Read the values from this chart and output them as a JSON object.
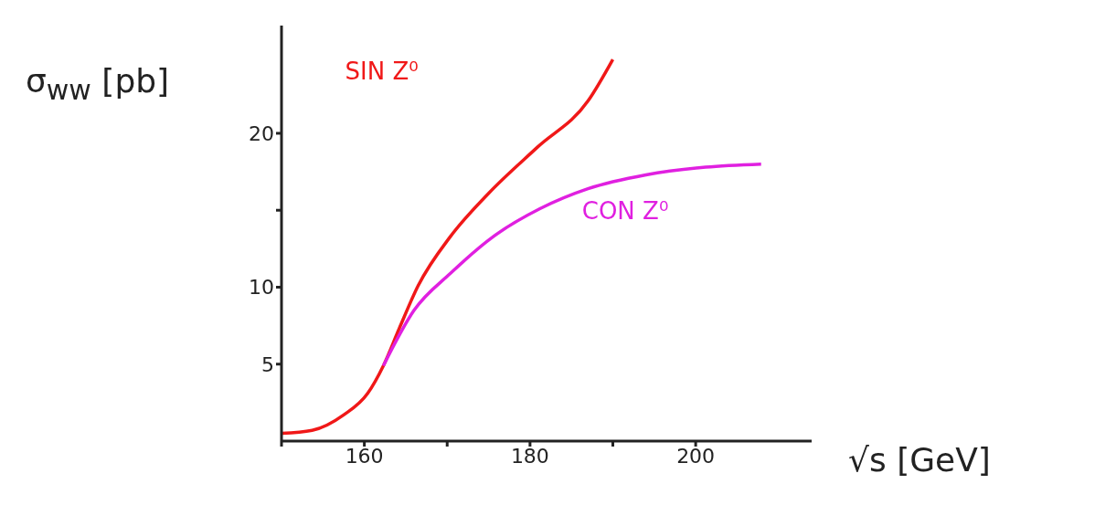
{
  "chart_data": {
    "type": "line",
    "xlabel": "√s [GeV]",
    "ylabel": "σ$_{ww}$ [pb]",
    "xlim": [
      150,
      214
    ],
    "ylim": [
      0,
      27
    ],
    "xticks": [
      {
        "value": 150,
        "label": null
      },
      160,
      {
        "value": 170,
        "label": null
      },
      180,
      {
        "value": 190,
        "label": null
      },
      200
    ],
    "yticks": [
      5,
      10,
      {
        "value": 15,
        "label": null
      },
      20
    ],
    "grid": false,
    "marker": "none",
    "line_style": "solid",
    "series": [
      {
        "name": "SIN Z⁰",
        "color": "#f01818",
        "x": [
          150,
          153.7,
          157.5,
          160.4,
          162.3,
          164.2,
          166.5,
          170.4,
          175,
          180.9,
          187,
          190
        ],
        "values": [
          0.5,
          0.7,
          1.7,
          3.1,
          4.9,
          7.3,
          10.1,
          13.3,
          16.1,
          19.1,
          22.1,
          24.8
        ]
      },
      {
        "name": "CON Z⁰",
        "color": "#e020e0",
        "x": [
          162.3,
          166,
          170.4,
          175.6,
          181.2,
          187,
          194,
          201.2,
          207.9
        ],
        "values": [
          4.9,
          8.5,
          10.9,
          13.3,
          15.1,
          16.4,
          17.3,
          17.8,
          18.0
        ]
      }
    ]
  }
}
